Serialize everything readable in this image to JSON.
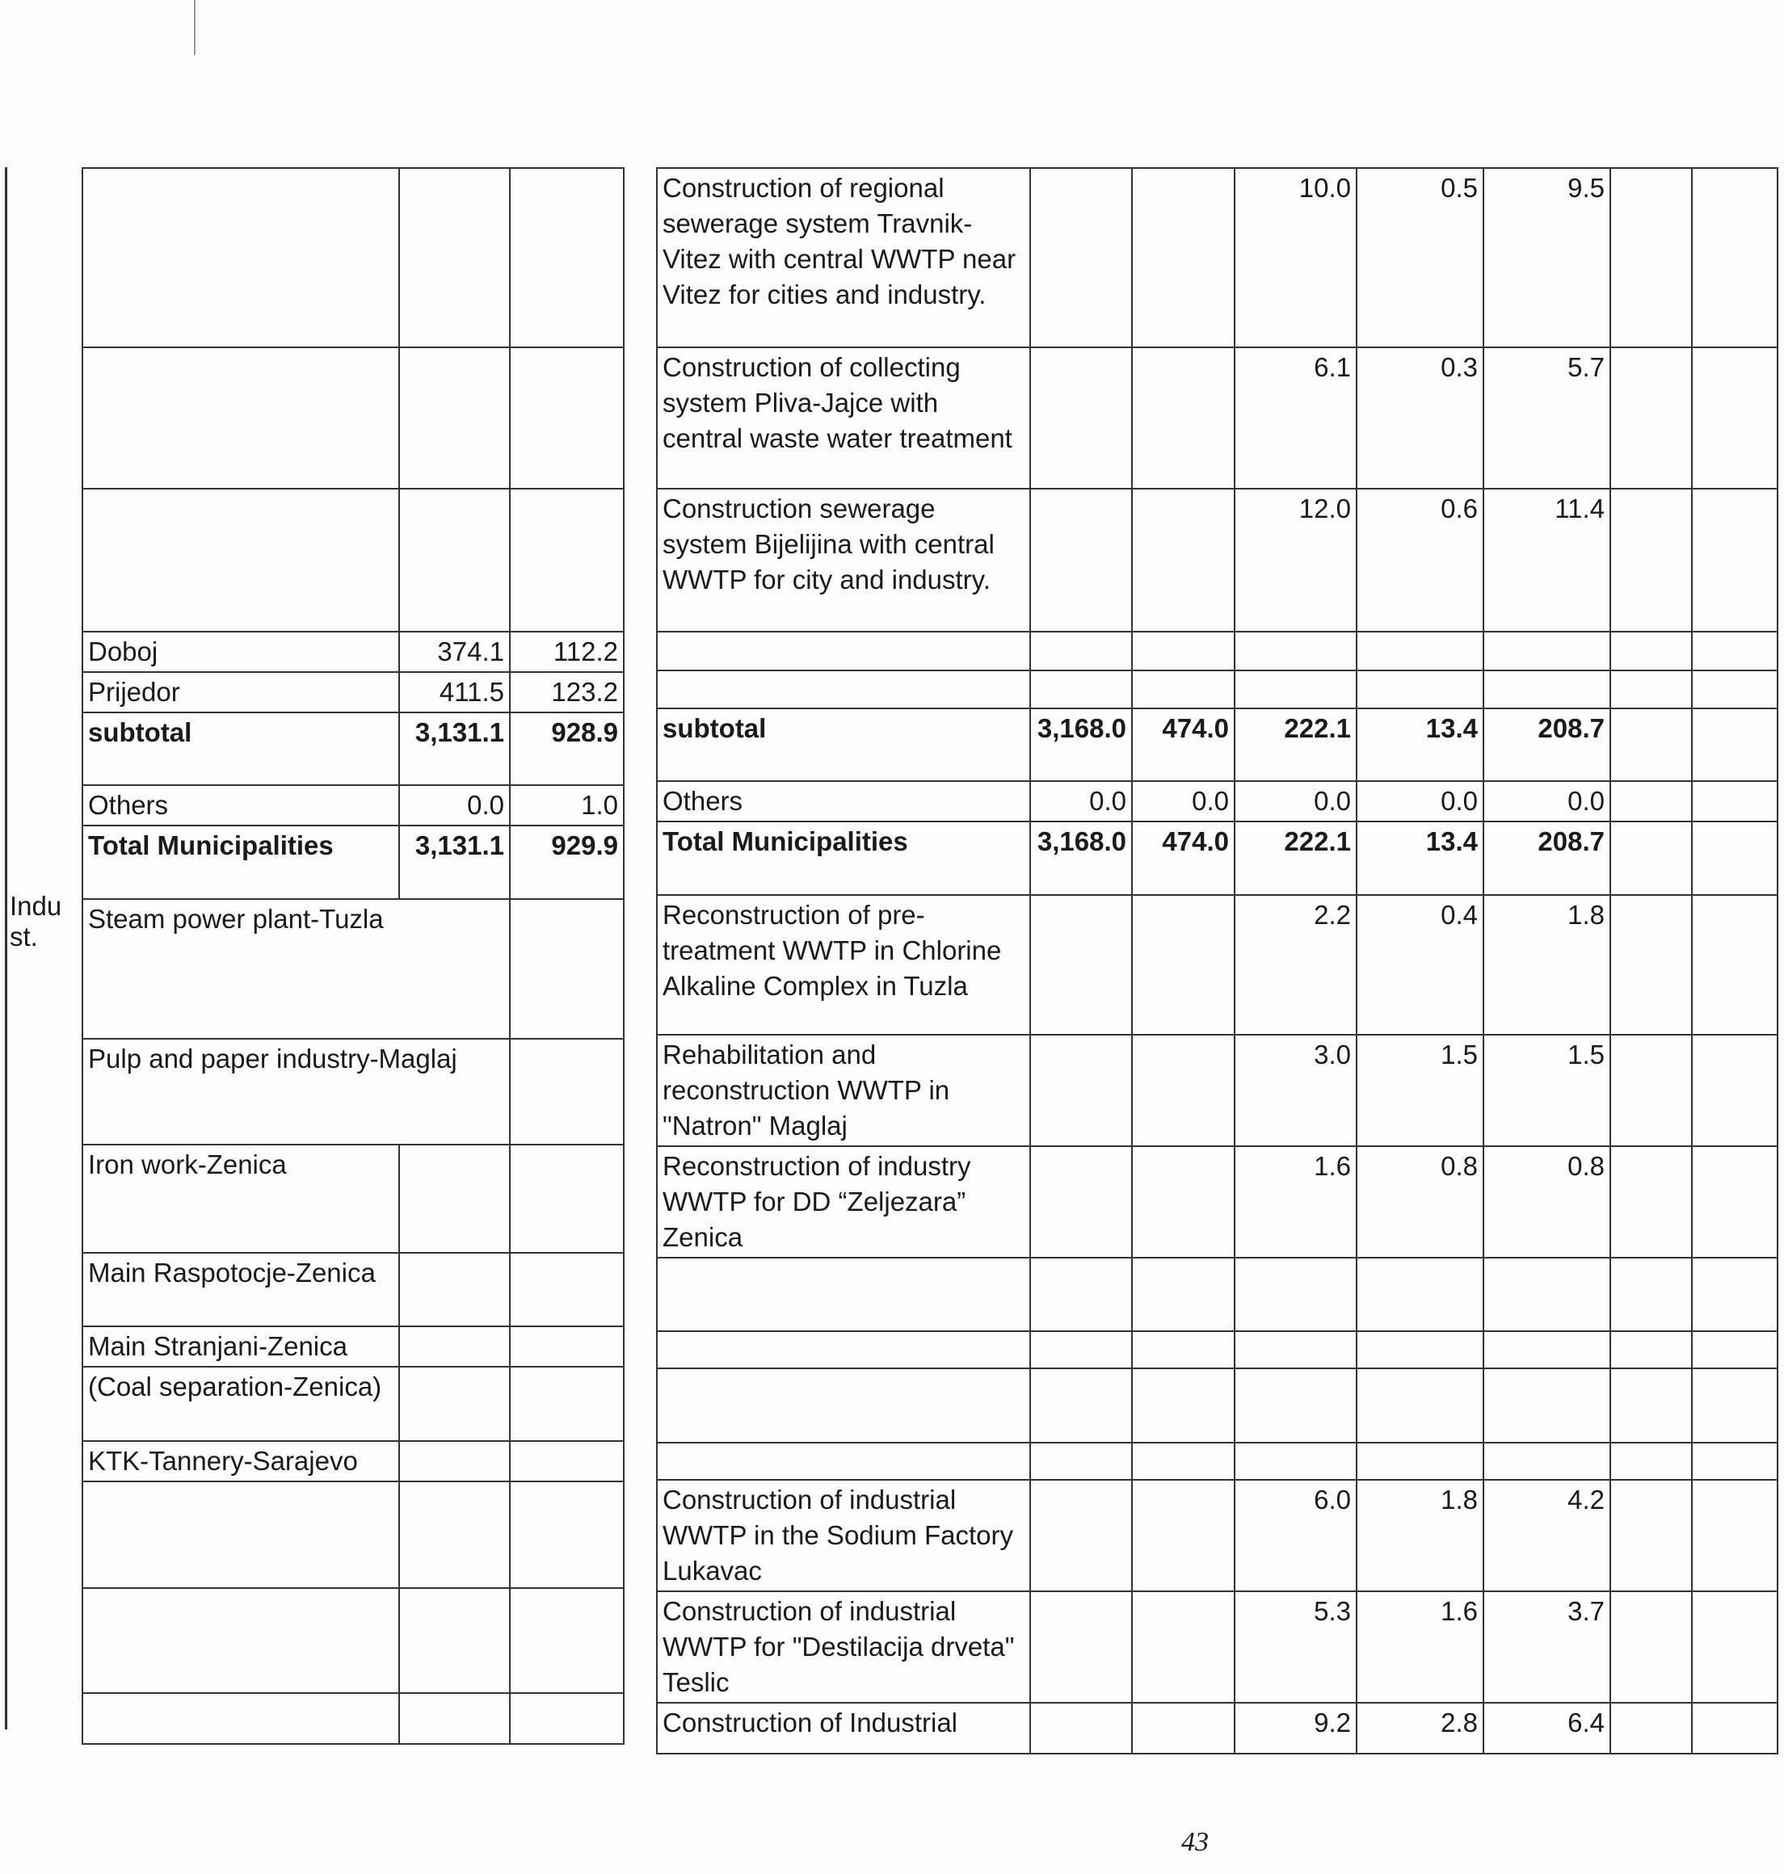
{
  "sector_label": "Indu st.",
  "page_number": "43",
  "left_rows": [
    {
      "name": "",
      "v1": "",
      "v2": ""
    },
    {
      "name": "",
      "v1": "",
      "v2": ""
    },
    {
      "name": "",
      "v1": "",
      "v2": ""
    },
    {
      "name": "Doboj",
      "v1": "374.1",
      "v2": "112.2"
    },
    {
      "name": "Prijedor",
      "v1": "411.5",
      "v2": "123.2"
    },
    {
      "name": "subtotal",
      "v1": "3,131.1",
      "v2": "928.9",
      "bold": true
    },
    {
      "name": "Others",
      "v1": "0.0",
      "v2": "1.0"
    },
    {
      "name": "Total Municipalities",
      "v1": "3,131.1",
      "v2": "929.9",
      "bold": true
    },
    {
      "name": "Steam power plant-Tuzla",
      "v1": "",
      "v2": "",
      "span": true
    },
    {
      "name": "Pulp and paper industry-Maglaj",
      "v1": "",
      "v2": "",
      "span": true
    },
    {
      "name": "Iron work-Zenica",
      "v1": "",
      "v2": ""
    },
    {
      "name": "Main Raspotocje-Zenica",
      "v1": "",
      "v2": ""
    },
    {
      "name": "Main Stranjani-Zenica",
      "v1": "",
      "v2": ""
    },
    {
      "name": "(Coal separation-Zenica)",
      "v1": "",
      "v2": ""
    },
    {
      "name": "KTK-Tannery-Sarajevo",
      "v1": "",
      "v2": ""
    },
    {
      "name": "",
      "v1": "",
      "v2": ""
    },
    {
      "name": "",
      "v1": "",
      "v2": ""
    },
    {
      "name": "",
      "v1": "",
      "v2": ""
    }
  ],
  "right_rows": [
    {
      "desc": "Construction of regional sewerage system Travnik-Vitez with central WWTP near Vitez for cities and industry.",
      "vals": [
        "",
        "",
        "10.0",
        "0.5",
        "9.5",
        "",
        ""
      ]
    },
    {
      "desc": "Construction of collecting system Pliva-Jajce with central waste water treatment",
      "vals": [
        "",
        "",
        "6.1",
        "0.3",
        "5.7",
        "",
        ""
      ]
    },
    {
      "desc": "Construction sewerage system Bijelijina with central WWTP for city and industry.",
      "vals": [
        "",
        "",
        "12.0",
        "0.6",
        "11.4",
        "",
        ""
      ]
    },
    {
      "desc": "",
      "vals": [
        "",
        "",
        "",
        "",
        "",
        "",
        ""
      ]
    },
    {
      "desc": "",
      "vals": [
        "",
        "",
        "",
        "",
        "",
        "",
        ""
      ]
    },
    {
      "desc": "subtotal",
      "vals": [
        "3,168.0",
        "474.0",
        "222.1",
        "13.4",
        "208.7",
        "",
        ""
      ],
      "bold": true
    },
    {
      "desc": "Others",
      "vals": [
        "0.0",
        "0.0",
        "0.0",
        "0.0",
        "0.0",
        "",
        ""
      ]
    },
    {
      "desc": "Total Municipalities",
      "vals": [
        "3,168.0",
        "474.0",
        "222.1",
        "13.4",
        "208.7",
        "",
        ""
      ],
      "bold": true
    },
    {
      "desc": "Reconstruction of pre-treatment WWTP in Chlorine Alkaline Complex in Tuzla",
      "vals": [
        "",
        "",
        "2.2",
        "0.4",
        "1.8",
        "",
        ""
      ]
    },
    {
      "desc": "Rehabilitation and reconstruction WWTP in \"Natron\" Maglaj",
      "vals": [
        "",
        "",
        "3.0",
        "1.5",
        "1.5",
        "",
        ""
      ]
    },
    {
      "desc": "Reconstruction of industry WWTP for DD “Zeljezara” Zenica",
      "vals": [
        "",
        "",
        "1.6",
        "0.8",
        "0.8",
        "",
        ""
      ]
    },
    {
      "desc": "",
      "vals": [
        "",
        "",
        "",
        "",
        "",
        "",
        ""
      ]
    },
    {
      "desc": "",
      "vals": [
        "",
        "",
        "",
        "",
        "",
        "",
        ""
      ]
    },
    {
      "desc": "",
      "vals": [
        "",
        "",
        "",
        "",
        "",
        "",
        ""
      ]
    },
    {
      "desc": "",
      "vals": [
        "",
        "",
        "",
        "",
        "",
        "",
        ""
      ]
    },
    {
      "desc": "Construction of industrial WWTP in the Sodium Factory Lukavac",
      "vals": [
        "",
        "",
        "6.0",
        "1.8",
        "4.2",
        "",
        ""
      ]
    },
    {
      "desc": "Construction of industrial WWTP for \"Destilacija drveta\" Teslic",
      "vals": [
        "",
        "",
        "5.3",
        "1.6",
        "3.7",
        "",
        ""
      ]
    },
    {
      "desc": "Construction of Industrial",
      "vals": [
        "",
        "",
        "9.2",
        "2.8",
        "6.4",
        "",
        ""
      ]
    }
  ]
}
